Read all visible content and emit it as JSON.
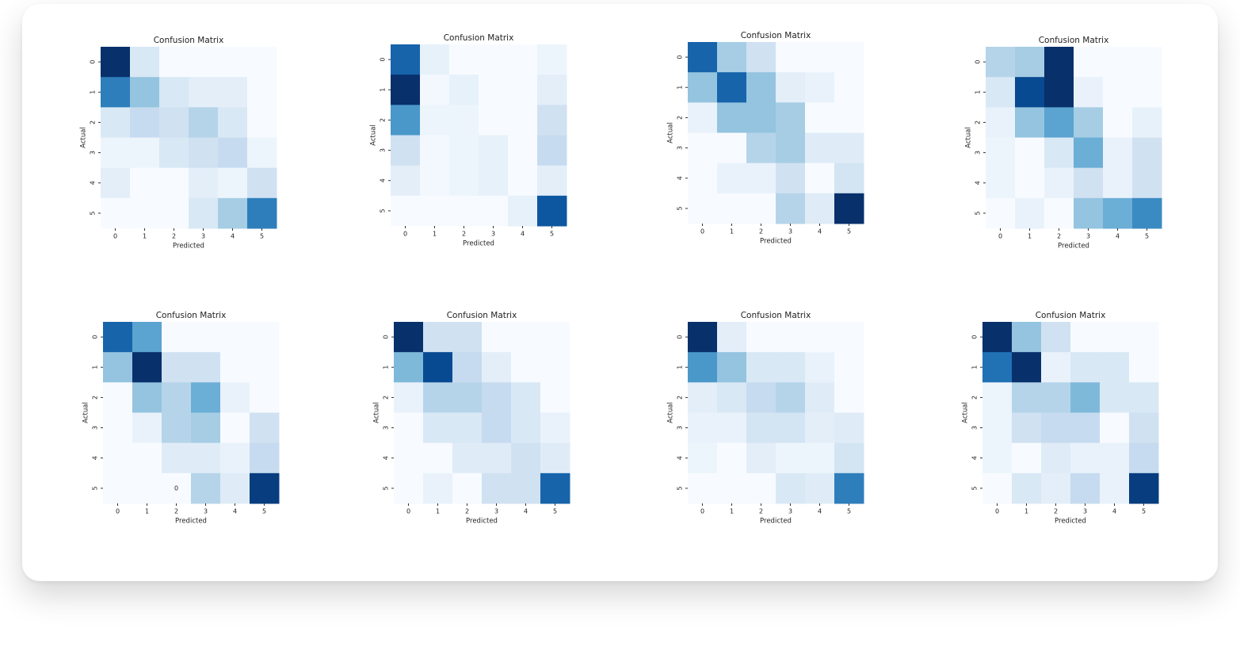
{
  "chart_data": [
    {
      "type": "heatmap",
      "title": "Confusion Matrix",
      "xlabel": "Predicted",
      "ylabel": "Actual",
      "colormap": "Blues",
      "x_categories": [
        "0",
        "1",
        "2",
        "3",
        "4",
        "5"
      ],
      "y_categories": [
        "0",
        "1",
        "2",
        "3",
        "4",
        "5"
      ],
      "values": [
        [
          10,
          1.5,
          0,
          0,
          0,
          0
        ],
        [
          7,
          4,
          1.5,
          1,
          1,
          0
        ],
        [
          1.5,
          2.5,
          2,
          3,
          1.5,
          0
        ],
        [
          0.5,
          0.5,
          1.5,
          2,
          2.5,
          0.5
        ],
        [
          1,
          0,
          0,
          1,
          0.5,
          2
        ],
        [
          0,
          0,
          0,
          1.5,
          3.5,
          7
        ]
      ]
    },
    {
      "type": "heatmap",
      "title": "Confusion Matrix",
      "xlabel": "Predicted",
      "ylabel": "Actual",
      "colormap": "Blues",
      "x_categories": [
        "0",
        "1",
        "2",
        "3",
        "4",
        "5"
      ],
      "y_categories": [
        "0",
        "1",
        "2",
        "3",
        "4",
        "5"
      ],
      "values": [
        [
          8,
          0.8,
          0,
          0,
          0,
          0.5
        ],
        [
          10,
          0.2,
          0.8,
          0,
          0,
          1
        ],
        [
          6,
          0.5,
          0.5,
          0,
          0,
          2
        ],
        [
          2,
          0.2,
          0.5,
          0.8,
          0,
          2.5
        ],
        [
          1,
          0.2,
          0.5,
          0.8,
          0,
          1
        ],
        [
          0,
          0,
          0,
          0,
          0.8,
          8.5
        ]
      ]
    },
    {
      "type": "heatmap",
      "title": "Confusion Matrix",
      "xlabel": "Predicted",
      "ylabel": "Actual",
      "colormap": "Blues",
      "x_categories": [
        "0",
        "1",
        "2",
        "3",
        "4",
        "5"
      ],
      "y_categories": [
        "0",
        "1",
        "2",
        "3",
        "4",
        "5"
      ],
      "values": [
        [
          8,
          3.5,
          2,
          0,
          0,
          0
        ],
        [
          4,
          8,
          4,
          1,
          0.7,
          0
        ],
        [
          0.7,
          4,
          4,
          3.5,
          0,
          0
        ],
        [
          0,
          0,
          3,
          3.5,
          1.2,
          1.2
        ],
        [
          0,
          0.7,
          0.7,
          2,
          0,
          1.8
        ],
        [
          0,
          0,
          0,
          3,
          1.2,
          10
        ]
      ]
    },
    {
      "type": "heatmap",
      "title": "Confusion Matrix",
      "xlabel": "Predicted",
      "ylabel": "Actual",
      "colormap": "Blues",
      "x_categories": [
        "0",
        "1",
        "2",
        "3",
        "4",
        "5"
      ],
      "y_categories": [
        "0",
        "1",
        "2",
        "3",
        "4",
        "5"
      ],
      "values": [
        [
          3,
          3.5,
          10,
          0,
          0,
          0
        ],
        [
          1.5,
          9,
          10,
          0.7,
          0,
          0
        ],
        [
          0.7,
          4,
          5.5,
          3.5,
          0,
          0.8
        ],
        [
          0.5,
          0,
          1.5,
          5,
          0.7,
          2
        ],
        [
          0.5,
          0,
          0.7,
          2,
          0.7,
          2
        ],
        [
          0,
          0.7,
          0,
          4,
          5,
          6.5
        ]
      ]
    },
    {
      "type": "heatmap",
      "title": "Confusion Matrix",
      "xlabel": "Predicted",
      "ylabel": "Actual",
      "colormap": "Blues",
      "x_categories": [
        "0",
        "1",
        "2",
        "3",
        "4",
        "5"
      ],
      "y_categories": [
        "0",
        "1",
        "2",
        "3",
        "4",
        "5"
      ],
      "values": [
        [
          8,
          5.5,
          0,
          0,
          0,
          0
        ],
        [
          4,
          10,
          2,
          2,
          0,
          0
        ],
        [
          0,
          4,
          3,
          5,
          0.7,
          0
        ],
        [
          0,
          0.7,
          3,
          3.5,
          0,
          2
        ],
        [
          0,
          0,
          1.2,
          1.2,
          0.7,
          2.5
        ],
        [
          0,
          0,
          0,
          3,
          1.2,
          9.5
        ]
      ],
      "annotated_cells": [
        [
          5,
          2
        ]
      ]
    },
    {
      "type": "heatmap",
      "title": "Confusion Matrix",
      "xlabel": "Predicted",
      "ylabel": "Actual",
      "colormap": "Blues",
      "x_categories": [
        "0",
        "1",
        "2",
        "3",
        "4",
        "5"
      ],
      "y_categories": [
        "0",
        "1",
        "2",
        "3",
        "4",
        "5"
      ],
      "values": [
        [
          10,
          2,
          2,
          0,
          0,
          0
        ],
        [
          4.5,
          9,
          2.5,
          1,
          0,
          0
        ],
        [
          0.7,
          3,
          3,
          2.5,
          1.5,
          0
        ],
        [
          0,
          1.5,
          1.5,
          2.5,
          1.5,
          0.7
        ],
        [
          0,
          0,
          1.2,
          1.2,
          2,
          1.2
        ],
        [
          0,
          0.7,
          0,
          2,
          2,
          8
        ]
      ]
    },
    {
      "type": "heatmap",
      "title": "Confusion Matrix",
      "xlabel": "Predicted",
      "ylabel": "Actual",
      "colormap": "Blues",
      "x_categories": [
        "0",
        "1",
        "2",
        "3",
        "4",
        "5"
      ],
      "y_categories": [
        "0",
        "1",
        "2",
        "3",
        "4",
        "5"
      ],
      "values": [
        [
          10,
          1,
          0,
          0,
          0,
          0
        ],
        [
          6,
          4,
          1.5,
          1.5,
          0.7,
          0
        ],
        [
          1,
          1.5,
          2.5,
          3,
          1.2,
          0
        ],
        [
          0.7,
          0.7,
          1.8,
          1.8,
          1,
          1.2
        ],
        [
          0.5,
          0,
          1,
          0.5,
          0.5,
          1.8
        ],
        [
          0,
          0,
          0,
          1.5,
          1.2,
          7
        ]
      ]
    },
    {
      "type": "heatmap",
      "title": "Confusion Matrix",
      "xlabel": "Predicted",
      "ylabel": "Actual",
      "colormap": "Blues",
      "x_categories": [
        "0",
        "1",
        "2",
        "3",
        "4",
        "5"
      ],
      "y_categories": [
        "0",
        "1",
        "2",
        "3",
        "4",
        "5"
      ],
      "values": [
        [
          10,
          4,
          2,
          0,
          0,
          0
        ],
        [
          7.5,
          10,
          0.7,
          1.5,
          1.5,
          0
        ],
        [
          0.5,
          3,
          3,
          4.5,
          1.5,
          1.5
        ],
        [
          0.5,
          2,
          2.5,
          2.5,
          0,
          2
        ],
        [
          0.5,
          0,
          1.2,
          0.7,
          0.7,
          2.5
        ],
        [
          0,
          1.5,
          1,
          2.5,
          0.7,
          9.5
        ]
      ]
    }
  ]
}
